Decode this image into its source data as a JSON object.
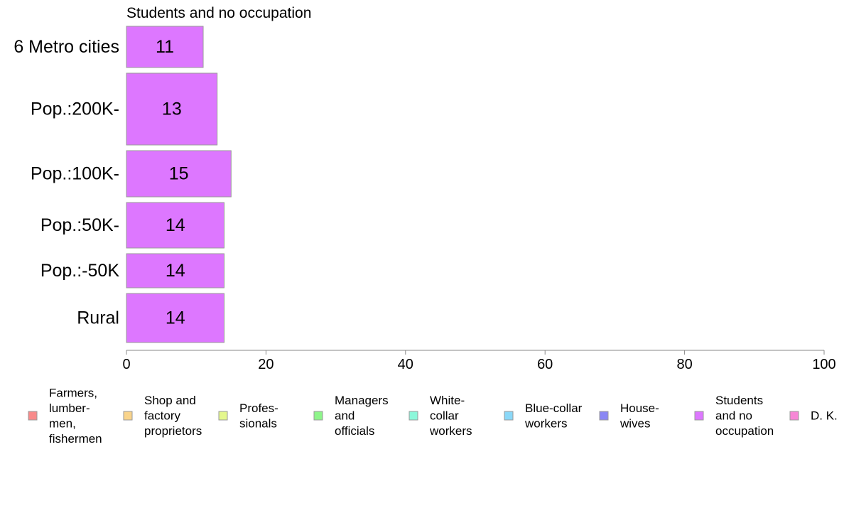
{
  "chart_data": {
    "type": "bar",
    "orientation": "horizontal",
    "title": "Students and no occupation",
    "categories": [
      "6 Metro cities",
      "Pop.:200K-",
      "Pop.:100K-",
      "Pop.:50K-",
      "Pop.:-50K",
      "Rural"
    ],
    "values": [
      11,
      13,
      15,
      14,
      14,
      14
    ],
    "bar_color": "#dd77ff",
    "xlim": [
      0,
      100
    ],
    "xticks": [
      "0",
      "20",
      "40",
      "60",
      "80",
      "100"
    ],
    "xlabel": "",
    "ylabel": "",
    "grid": false,
    "legend_position": "bottom",
    "legend": [
      {
        "lines": [
          "Farmers,",
          "lumber-",
          "men,",
          "fishermen"
        ],
        "color": "#f88a8a"
      },
      {
        "lines": [
          "Shop and",
          "factory",
          "proprietors"
        ],
        "color": "#f9d48b"
      },
      {
        "lines": [
          "Profes-",
          "sionals"
        ],
        "color": "#e4f78d"
      },
      {
        "lines": [
          "Managers",
          "and",
          "officials"
        ],
        "color": "#8ef58a"
      },
      {
        "lines": [
          "White-",
          "collar",
          "workers"
        ],
        "color": "#8cf7da"
      },
      {
        "lines": [
          "Blue-collar",
          "workers"
        ],
        "color": "#8ad8f8"
      },
      {
        "lines": [
          "House-",
          "wives"
        ],
        "color": "#8a87f4"
      },
      {
        "lines": [
          "Students",
          "and no",
          "occupation"
        ],
        "color": "#dd77ff"
      },
      {
        "lines": [
          "D. K."
        ],
        "color": "#f786d6"
      }
    ]
  }
}
